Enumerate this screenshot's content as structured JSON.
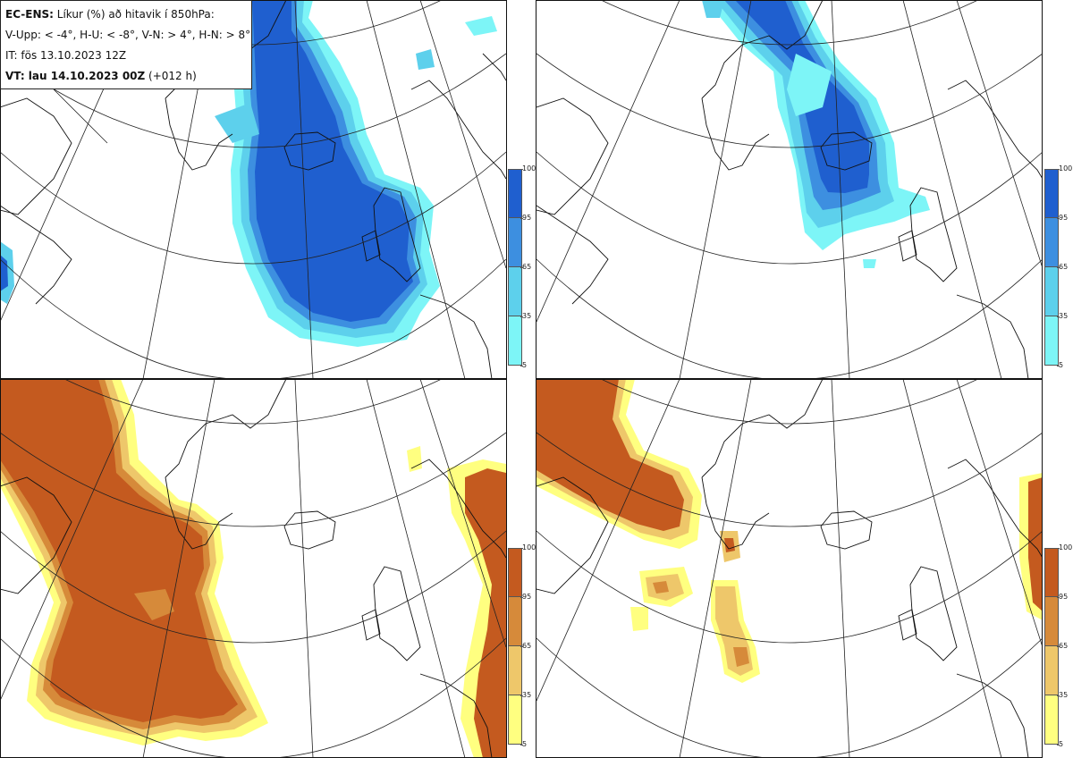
{
  "header": {
    "model": "EC-ENS:",
    "title_rest": "Líkur (%) að hitavik í 850hPa:",
    "thresholds": "V-Upp: < -4°, H-U: < -8°, V-N: > 4°, H-N: > 8°",
    "initial_time": "IT: fös 13.10.2023 12Z",
    "valid_label": "VT: lau 14.10.2023 00Z",
    "valid_offset": "(+012 h)"
  },
  "colors": {
    "cold_scale": [
      "#7df5f7",
      "#5dd0ec",
      "#3d8fe0",
      "#1f5fcf"
    ],
    "warm_scale": [
      "#ffff80",
      "#eec76a",
      "#d68a3a",
      "#c45a1f"
    ],
    "coast": "#111111",
    "grid": "#222222"
  },
  "panels": [
    {
      "id": "V-Upp",
      "scale": "cold"
    },
    {
      "id": "H-U",
      "scale": "cold"
    },
    {
      "id": "V-N",
      "scale": "warm"
    },
    {
      "id": "H-N",
      "scale": "warm"
    }
  ],
  "legend_ticks": [
    "100",
    "95",
    "65",
    "35",
    "5"
  ]
}
